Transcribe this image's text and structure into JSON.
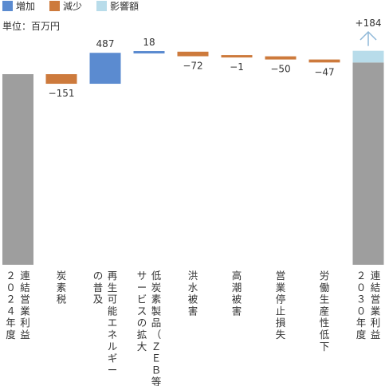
{
  "chart_data": {
    "type": "waterfall",
    "unit_label": "単位：百万円",
    "legend": [
      {
        "key": "increase",
        "label": "増加",
        "color": "#5b8bd0"
      },
      {
        "key": "decrease",
        "label": "減少",
        "color": "#cd7a3c"
      },
      {
        "key": "impact",
        "label": "影響額",
        "color": "#b8dcea"
      }
    ],
    "total_color": "#9e9e9e",
    "arrow_color": "#8fb8d8",
    "start": {
      "label": "連結営業利益\n２０２４年度",
      "value": 3000
    },
    "steps": [
      {
        "label": "炭素税",
        "value": -151,
        "display": "−151",
        "kind": "decrease"
      },
      {
        "label": "再生可能エネルギー\nの普及",
        "value": 487,
        "display": "487",
        "kind": "increase"
      },
      {
        "label": "低炭素製品（ＺＥＢ等）\nサービスの拡大",
        "value": 18,
        "display": "18",
        "kind": "increase"
      },
      {
        "label": "洪水被害",
        "value": -72,
        "display": "−72",
        "kind": "decrease"
      },
      {
        "label": "高潮被害",
        "value": -1,
        "display": "−1",
        "kind": "decrease"
      },
      {
        "label": "営業停止損失",
        "value": -50,
        "display": "−50",
        "kind": "decrease"
      },
      {
        "label": "労働生産性低下",
        "value": -47,
        "display": "−47",
        "kind": "decrease"
      }
    ],
    "end": {
      "label": "連結営業利益\n２０３０年度",
      "impact": 184,
      "impact_display": "+184"
    }
  }
}
